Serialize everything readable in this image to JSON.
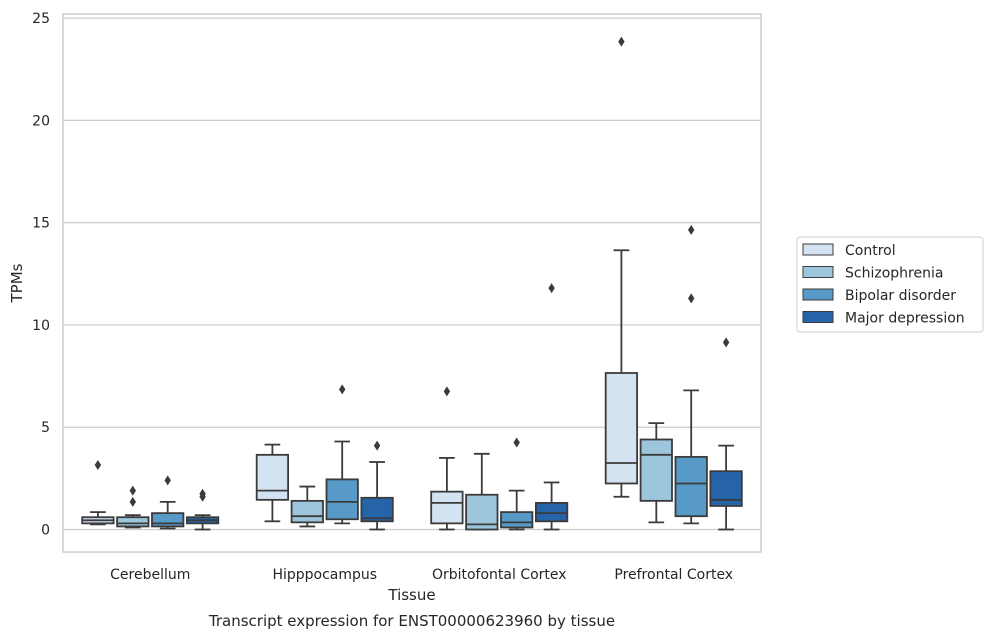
{
  "caption": "Transcript expression for ENST00000623960 by tissue",
  "chart_data": {
    "type": "boxplot",
    "xlabel": "Tissue",
    "ylabel": "TPMs",
    "ylim": [
      -1.1,
      25.2
    ],
    "yticks": [
      0,
      5,
      10,
      15,
      20,
      25
    ],
    "grid": "horizontal",
    "legend_position": "right",
    "categories": [
      "Cerebellum",
      "Hipppocampus",
      "Orbitofontal Cortex",
      "Prefrontal Cortex"
    ],
    "series": [
      {
        "name": "Control",
        "color": "#d4e3f2",
        "boxes": [
          {
            "whislo": 0.25,
            "q1": 0.3,
            "med": 0.45,
            "q3": 0.6,
            "whishi": 0.85,
            "fliers": [
              3.15
            ]
          },
          {
            "whislo": 0.4,
            "q1": 1.45,
            "med": 1.9,
            "q3": 3.65,
            "whishi": 4.15,
            "fliers": []
          },
          {
            "whislo": 0.0,
            "q1": 0.3,
            "med": 1.3,
            "q3": 1.85,
            "whishi": 3.5,
            "fliers": [
              6.75
            ]
          },
          {
            "whislo": 1.6,
            "q1": 2.25,
            "med": 3.25,
            "q3": 7.65,
            "whishi": 13.65,
            "fliers": [
              23.85
            ]
          }
        ]
      },
      {
        "name": "Schizophrenia",
        "color": "#9dc5dc",
        "boxes": [
          {
            "whislo": 0.1,
            "q1": 0.15,
            "med": 0.3,
            "q3": 0.6,
            "whishi": 0.7,
            "fliers": [
              1.35,
              1.9
            ]
          },
          {
            "whislo": 0.15,
            "q1": 0.35,
            "med": 0.65,
            "q3": 1.4,
            "whishi": 2.1,
            "fliers": []
          },
          {
            "whislo": 0.0,
            "q1": 0.0,
            "med": 0.25,
            "q3": 1.7,
            "whishi": 3.7,
            "fliers": []
          },
          {
            "whislo": 0.35,
            "q1": 1.4,
            "med": 3.65,
            "q3": 4.4,
            "whishi": 5.2,
            "fliers": []
          }
        ]
      },
      {
        "name": "Bipolar disorder",
        "color": "#5799c7",
        "boxes": [
          {
            "whislo": 0.05,
            "q1": 0.15,
            "med": 0.3,
            "q3": 0.8,
            "whishi": 1.35,
            "fliers": [
              2.4
            ]
          },
          {
            "whislo": 0.3,
            "q1": 0.5,
            "med": 1.35,
            "q3": 2.45,
            "whishi": 4.3,
            "fliers": [
              6.85
            ]
          },
          {
            "whislo": 0.0,
            "q1": 0.1,
            "med": 0.35,
            "q3": 0.85,
            "whishi": 1.9,
            "fliers": [
              4.25
            ]
          },
          {
            "whislo": 0.3,
            "q1": 0.65,
            "med": 2.25,
            "q3": 3.55,
            "whishi": 6.8,
            "fliers": [
              11.3,
              14.65
            ]
          }
        ]
      },
      {
        "name": "Major depression",
        "color": "#2664a9",
        "boxes": [
          {
            "whislo": 0.0,
            "q1": 0.3,
            "med": 0.45,
            "q3": 0.6,
            "whishi": 0.7,
            "fliers": [
              1.6,
              1.75
            ]
          },
          {
            "whislo": 0.0,
            "q1": 0.4,
            "med": 0.55,
            "q3": 1.55,
            "whishi": 3.3,
            "fliers": [
              4.1
            ]
          },
          {
            "whislo": 0.0,
            "q1": 0.4,
            "med": 0.8,
            "q3": 1.3,
            "whishi": 2.3,
            "fliers": [
              11.8
            ]
          },
          {
            "whislo": 0.0,
            "q1": 1.15,
            "med": 1.45,
            "q3": 2.85,
            "whishi": 4.1,
            "fliers": [
              9.15
            ]
          }
        ]
      }
    ]
  }
}
